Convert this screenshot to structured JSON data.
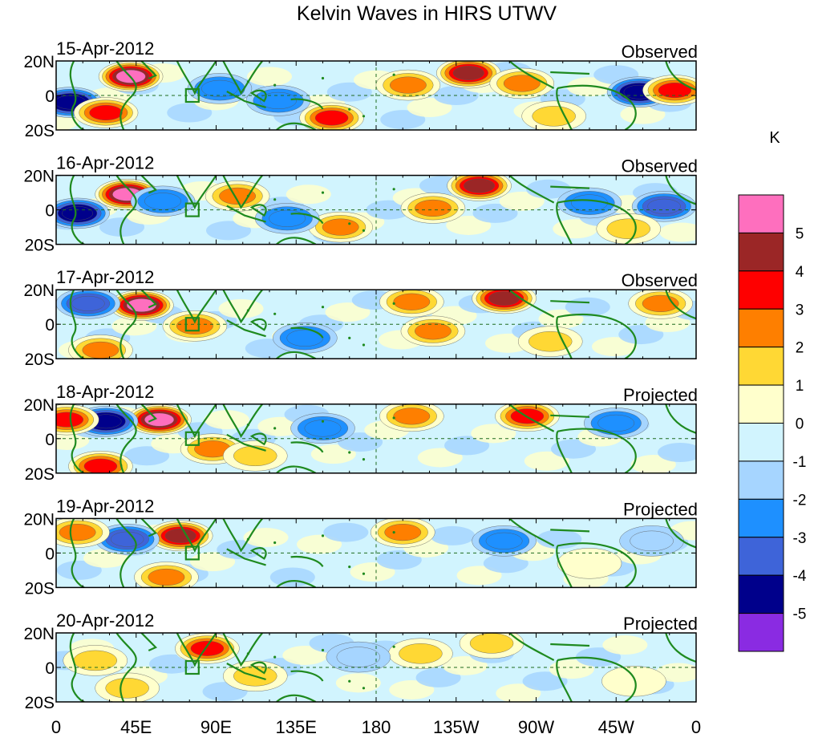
{
  "chart_data": {
    "type": "heatmap",
    "title": "Kelvin Waves in HIRS UTWV",
    "x_ticks": [
      "0",
      "45E",
      "90E",
      "135E",
      "180",
      "135W",
      "90W",
      "45W",
      "0"
    ],
    "y_ticks": [
      "20N",
      "0",
      "20S"
    ],
    "panels": [
      {
        "date": "15-Apr-2012",
        "label": "Observed",
        "features": [
          {
            "lon": 42,
            "lat": 11,
            "value": 5.2
          },
          {
            "lon": 8,
            "lat": -4,
            "value": -4.5
          },
          {
            "lon": 28,
            "lat": -10,
            "value": 3.2
          },
          {
            "lon": 92,
            "lat": 4,
            "value": -2.5
          },
          {
            "lon": 155,
            "lat": -13,
            "value": 3.2
          },
          {
            "lon": 232,
            "lat": 13,
            "value": 4.5
          },
          {
            "lon": 262,
            "lat": 7,
            "value": 2.6
          },
          {
            "lon": 328,
            "lat": 2,
            "value": -4.5
          },
          {
            "lon": 348,
            "lat": 3,
            "value": 3.5
          },
          {
            "lon": 125,
            "lat": -3,
            "value": -2.2
          },
          {
            "lon": 198,
            "lat": 6,
            "value": 2.1
          },
          {
            "lon": 280,
            "lat": -12,
            "value": 1.6
          }
        ]
      },
      {
        "date": "16-Apr-2012",
        "label": "Observed",
        "features": [
          {
            "lon": 40,
            "lat": 9,
            "value": 5.1
          },
          {
            "lon": 12,
            "lat": -2,
            "value": -4.2
          },
          {
            "lon": 60,
            "lat": 5,
            "value": -2.6
          },
          {
            "lon": 102,
            "lat": 8,
            "value": 2.6
          },
          {
            "lon": 160,
            "lat": -10,
            "value": 2.6
          },
          {
            "lon": 212,
            "lat": 1,
            "value": 2.6
          },
          {
            "lon": 238,
            "lat": 14,
            "value": 4.1
          },
          {
            "lon": 300,
            "lat": 4,
            "value": -2.6
          },
          {
            "lon": 342,
            "lat": 2,
            "value": -3.5
          },
          {
            "lon": 322,
            "lat": -11,
            "value": 1.6
          },
          {
            "lon": 130,
            "lat": -5,
            "value": -2.1
          }
        ]
      },
      {
        "date": "17-Apr-2012",
        "label": "Observed",
        "features": [
          {
            "lon": 48,
            "lat": 11,
            "value": 5.2
          },
          {
            "lon": 18,
            "lat": 12,
            "value": -3.5
          },
          {
            "lon": 78,
            "lat": -1,
            "value": 2.6
          },
          {
            "lon": 25,
            "lat": -15,
            "value": 2.6
          },
          {
            "lon": 200,
            "lat": 13,
            "value": 2.6
          },
          {
            "lon": 252,
            "lat": 15,
            "value": 4.1
          },
          {
            "lon": 212,
            "lat": -4,
            "value": 2.1
          },
          {
            "lon": 278,
            "lat": -10,
            "value": 1.6
          },
          {
            "lon": 340,
            "lat": 12,
            "value": 2.6
          },
          {
            "lon": 140,
            "lat": -8,
            "value": -2.2
          }
        ]
      },
      {
        "date": "18-Apr-2012",
        "label": "Projected",
        "features": [
          {
            "lon": 58,
            "lat": 11,
            "value": 5.1
          },
          {
            "lon": 28,
            "lat": 10,
            "value": -4.2
          },
          {
            "lon": 6,
            "lat": 11,
            "value": 3.2
          },
          {
            "lon": 88,
            "lat": -6,
            "value": 2.6
          },
          {
            "lon": 25,
            "lat": -16,
            "value": 3.2
          },
          {
            "lon": 200,
            "lat": 13,
            "value": 2.6
          },
          {
            "lon": 265,
            "lat": 13,
            "value": 3.5
          },
          {
            "lon": 315,
            "lat": 9,
            "value": -2.1
          },
          {
            "lon": 112,
            "lat": -10,
            "value": 1.6
          },
          {
            "lon": 150,
            "lat": 6,
            "value": -2.1
          }
        ]
      },
      {
        "date": "19-Apr-2012",
        "label": "Projected",
        "features": [
          {
            "lon": 70,
            "lat": 10,
            "value": 4.5
          },
          {
            "lon": 40,
            "lat": 8,
            "value": -3.5
          },
          {
            "lon": 12,
            "lat": 12,
            "value": 2.6
          },
          {
            "lon": 62,
            "lat": -14,
            "value": 2.1
          },
          {
            "lon": 195,
            "lat": 12,
            "value": 2.1
          },
          {
            "lon": 252,
            "lat": 7,
            "value": -2.1
          },
          {
            "lon": 300,
            "lat": -6,
            "value": 0.8
          },
          {
            "lon": 335,
            "lat": 7,
            "value": -1.6
          }
        ]
      },
      {
        "date": "20-Apr-2012",
        "label": "Projected",
        "features": [
          {
            "lon": 85,
            "lat": 11,
            "value": 3.8
          },
          {
            "lon": 22,
            "lat": 4,
            "value": 1.6
          },
          {
            "lon": 112,
            "lat": -5,
            "value": 1.6
          },
          {
            "lon": 205,
            "lat": 8,
            "value": 1.3
          },
          {
            "lon": 245,
            "lat": 14,
            "value": 1.2
          },
          {
            "lon": 40,
            "lat": -12,
            "value": 1.2
          },
          {
            "lon": 170,
            "lat": 6,
            "value": -1.3
          },
          {
            "lon": 325,
            "lat": -8,
            "value": 0.8
          }
        ]
      }
    ],
    "colorbar": {
      "unit": "K",
      "labels": [
        "5",
        "4",
        "3",
        "2",
        "1",
        "0",
        "-1",
        "-2",
        "-3",
        "-4",
        "-5"
      ],
      "colors": [
        "#fe6fbe",
        "#9b2626",
        "#fe0000",
        "#fe7f00",
        "#ffd834",
        "#ffffcc",
        "#d1f4fe",
        "#a6d5ff",
        "#1e90ff",
        "#3e64d9",
        "#00008b",
        "#8a2be2"
      ]
    },
    "grid": false
  }
}
